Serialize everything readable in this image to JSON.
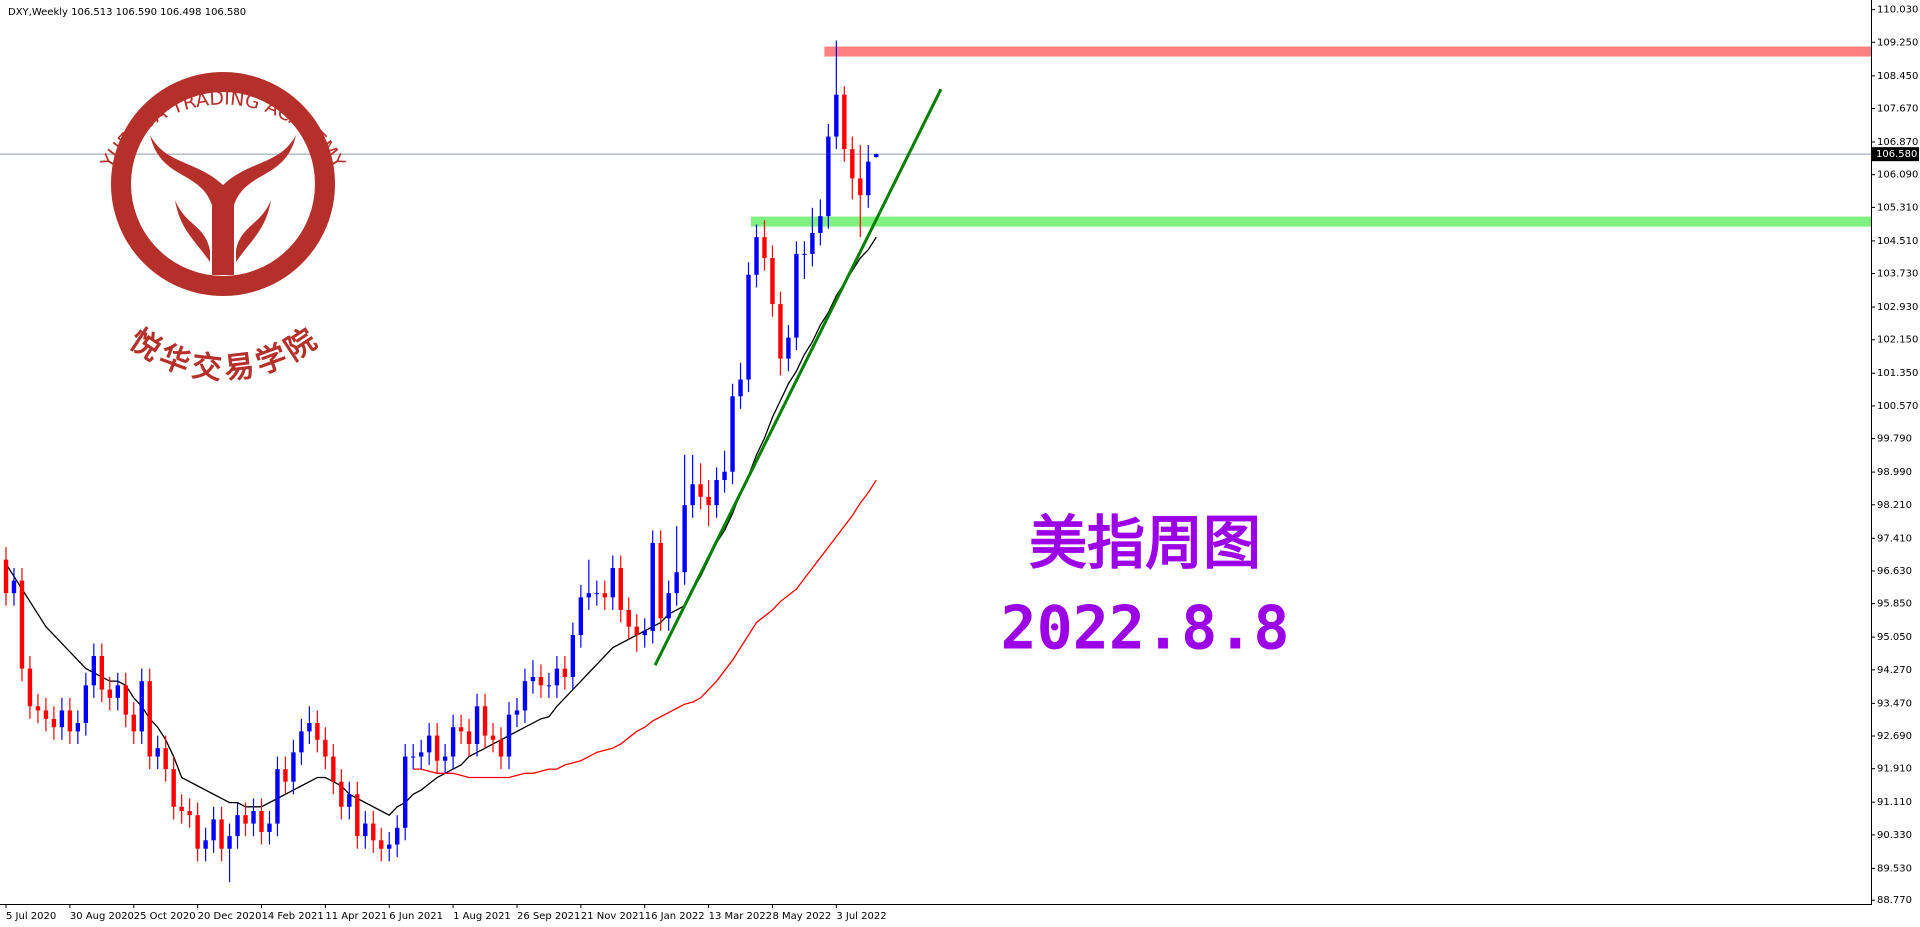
{
  "chart_data": {
    "type": "candlestick",
    "title": "DXY,Weekly  106.513 106.590 106.498 106.580",
    "annotations": [
      "美指周图",
      "2022.8.8"
    ],
    "logo": {
      "arc_text": "YUEHUA TRADING ACADEMY",
      "name": "悦华交易学院",
      "color": "#b5302a"
    },
    "annotation_color": "#9b00e6",
    "up_color": "#0000ff",
    "down_color": "#ff0000",
    "categories": [
      "5 Jul 2020",
      null,
      null,
      null,
      null,
      null,
      null,
      null,
      "30 Aug 2020",
      null,
      null,
      null,
      null,
      null,
      null,
      null,
      "25 Oct 2020",
      null,
      null,
      null,
      null,
      null,
      null,
      null,
      "20 Dec 2020",
      null,
      null,
      null,
      null,
      null,
      null,
      null,
      "14 Feb 2021",
      null,
      null,
      null,
      null,
      null,
      null,
      null,
      "11 Apr 2021",
      null,
      null,
      null,
      null,
      null,
      null,
      null,
      "6 Jun 2021",
      null,
      null,
      null,
      null,
      null,
      null,
      null,
      "1 Aug 2021",
      null,
      null,
      null,
      null,
      null,
      null,
      null,
      "26 Sep 2021",
      null,
      null,
      null,
      null,
      null,
      null,
      null,
      "21 Nov 2021",
      null,
      null,
      null,
      null,
      null,
      null,
      null,
      "16 Jan 2022",
      null,
      null,
      null,
      null,
      null,
      null,
      null,
      "13 Mar 2022",
      null,
      null,
      null,
      null,
      null,
      null,
      null,
      "8 May 2022",
      null,
      null,
      null,
      null,
      null,
      null,
      null,
      "3 Jul 2022",
      null,
      null,
      null,
      null,
      null
    ],
    "open": [
      96.9,
      96.1,
      96.4,
      94.3,
      93.4,
      93.3,
      93.1,
      92.9,
      93.3,
      92.8,
      93.0,
      93.9,
      94.6,
      93.8,
      93.6,
      93.9,
      93.2,
      92.8,
      94.0,
      92.2,
      92.4,
      91.9,
      91.0,
      90.9,
      90.8,
      90.0,
      90.2,
      90.7,
      90.0,
      90.3,
      90.8,
      90.6,
      90.9,
      90.4,
      90.6,
      91.9,
      91.6,
      92.3,
      92.8,
      93.0,
      92.6,
      92.2,
      91.6,
      91.0,
      91.3,
      90.3,
      90.6,
      90.2,
      90.0,
      90.1,
      90.5,
      92.2,
      92.2,
      92.3,
      92.7,
      92.1,
      92.2,
      92.9,
      92.8,
      92.5,
      93.4,
      92.7,
      92.6,
      92.2,
      93.2,
      93.3,
      94.0,
      94.1,
      93.9,
      93.9,
      94.3,
      94.1,
      95.1,
      96.0,
      96.1,
      96.1,
      96.0,
      96.7,
      95.7,
      95.3,
      95.1,
      95.2,
      97.3,
      95.5,
      96.1,
      96.6,
      98.2,
      98.7,
      98.4,
      98.2,
      98.8,
      99.0,
      100.8,
      101.2,
      103.7,
      104.6,
      104.1,
      103.0,
      101.7,
      102.2,
      104.2,
      104.2,
      104.7,
      105.1,
      107.0,
      108.0,
      106.7,
      106.0,
      105.6,
      106.513
    ],
    "high": [
      97.2,
      96.7,
      96.7,
      94.6,
      93.7,
      93.6,
      93.4,
      93.6,
      93.6,
      93.3,
      94.2,
      94.9,
      94.9,
      94.1,
      94.2,
      94.2,
      93.5,
      94.3,
      94.3,
      92.7,
      92.7,
      92.2,
      91.3,
      91.2,
      91.1,
      90.5,
      91.0,
      91.0,
      90.6,
      91.1,
      91.1,
      91.2,
      91.2,
      90.9,
      92.2,
      92.2,
      92.6,
      93.1,
      93.4,
      93.3,
      92.9,
      92.5,
      91.9,
      91.6,
      91.6,
      90.9,
      90.9,
      90.5,
      90.4,
      90.8,
      92.5,
      92.5,
      92.6,
      93.0,
      93.0,
      92.5,
      93.2,
      93.2,
      93.1,
      93.7,
      93.7,
      93.0,
      92.9,
      93.5,
      93.6,
      94.3,
      94.5,
      94.4,
      94.2,
      94.6,
      94.6,
      95.4,
      96.3,
      96.9,
      96.4,
      96.4,
      97.0,
      97.0,
      96.0,
      95.6,
      95.5,
      97.6,
      97.6,
      96.4,
      97.7,
      99.4,
      99.4,
      99.2,
      98.8,
      99.1,
      99.5,
      101.1,
      101.6,
      104.0,
      104.9,
      105.0,
      104.4,
      103.3,
      102.5,
      104.5,
      104.5,
      105.3,
      105.5,
      107.3,
      109.29,
      108.2,
      107.0,
      106.8,
      106.8,
      106.59
    ],
    "low": [
      95.8,
      95.8,
      94.0,
      93.1,
      93.0,
      92.8,
      92.6,
      92.6,
      92.5,
      92.5,
      92.7,
      93.6,
      93.5,
      93.3,
      93.3,
      92.9,
      92.5,
      92.5,
      91.9,
      91.9,
      91.6,
      90.7,
      90.6,
      90.5,
      89.7,
      89.7,
      89.9,
      89.7,
      89.2,
      90.0,
      90.3,
      90.3,
      90.1,
      90.1,
      90.3,
      91.3,
      91.3,
      92.0,
      92.5,
      92.3,
      91.9,
      91.3,
      90.7,
      90.7,
      90.0,
      90.0,
      89.9,
      89.7,
      89.7,
      89.8,
      90.2,
      91.9,
      91.9,
      92.0,
      91.8,
      91.8,
      91.9,
      92.5,
      92.2,
      92.2,
      92.4,
      92.3,
      91.9,
      91.9,
      92.9,
      93.0,
      93.7,
      93.6,
      93.6,
      93.6,
      93.8,
      93.8,
      94.8,
      95.7,
      95.8,
      95.7,
      95.7,
      95.4,
      95.0,
      94.7,
      94.8,
      94.9,
      95.2,
      95.2,
      95.8,
      96.3,
      97.9,
      98.1,
      97.7,
      97.9,
      98.5,
      98.7,
      100.5,
      100.9,
      103.4,
      103.8,
      102.7,
      101.3,
      101.4,
      101.9,
      103.6,
      103.9,
      104.4,
      104.8,
      106.7,
      106.4,
      105.5,
      104.6,
      105.3,
      106.498
    ],
    "close": [
      96.1,
      96.4,
      94.3,
      93.4,
      93.3,
      93.1,
      92.9,
      93.3,
      92.8,
      93.0,
      93.9,
      94.6,
      93.8,
      93.6,
      93.9,
      93.2,
      92.8,
      94.0,
      92.2,
      92.4,
      91.9,
      91.0,
      90.9,
      90.8,
      90.0,
      90.2,
      90.7,
      90.0,
      90.3,
      90.8,
      90.6,
      90.9,
      90.4,
      90.6,
      91.9,
      91.6,
      92.3,
      92.8,
      93.0,
      92.6,
      92.2,
      91.6,
      91.0,
      91.3,
      90.3,
      90.6,
      90.2,
      90.0,
      90.1,
      90.5,
      92.2,
      92.2,
      92.3,
      92.7,
      92.1,
      92.2,
      92.9,
      92.8,
      92.5,
      93.4,
      92.7,
      92.6,
      92.2,
      93.2,
      93.3,
      94.0,
      94.1,
      93.9,
      93.9,
      94.3,
      94.1,
      95.1,
      96.0,
      96.1,
      96.1,
      96.0,
      96.7,
      95.7,
      95.3,
      95.1,
      95.2,
      97.3,
      95.5,
      96.1,
      96.6,
      98.2,
      98.7,
      98.4,
      98.2,
      98.8,
      99.0,
      100.8,
      101.2,
      103.7,
      104.6,
      104.1,
      103.0,
      101.7,
      102.2,
      104.2,
      104.2,
      104.7,
      105.1,
      107.0,
      108.0,
      106.7,
      106.0,
      105.6,
      106.4,
      106.58
    ],
    "moving_averages": [
      {
        "color": "#000000",
        "values": [
          96.8,
          96.5,
          96.2,
          95.9,
          95.6,
          95.3,
          95.1,
          94.9,
          94.7,
          94.5,
          94.3,
          94.2,
          94.1,
          94.0,
          94.0,
          93.9,
          93.6,
          93.4,
          93.1,
          92.9,
          92.6,
          92.2,
          91.7,
          91.6,
          91.5,
          91.4,
          91.3,
          91.2,
          91.1,
          91.1,
          91.0,
          91.0,
          91.0,
          91.1,
          91.2,
          91.3,
          91.4,
          91.5,
          91.6,
          91.7,
          91.7,
          91.6,
          91.5,
          91.3,
          91.2,
          91.1,
          91.0,
          90.9,
          90.8,
          91.0,
          91.1,
          91.3,
          91.4,
          91.55,
          91.7,
          91.8,
          91.9,
          92.0,
          92.2,
          92.3,
          92.4,
          92.5,
          92.6,
          92.7,
          92.8,
          92.9,
          93.0,
          93.1,
          93.15,
          93.4,
          93.6,
          93.8,
          94.0,
          94.2,
          94.4,
          94.6,
          94.8,
          94.9,
          95.0,
          95.1,
          95.2,
          95.3,
          95.4,
          95.6,
          95.7,
          95.8,
          96.2,
          96.5,
          96.9,
          97.3,
          97.6,
          98.0,
          98.5,
          98.9,
          99.4,
          99.8,
          100.3,
          100.7,
          101.1,
          101.4,
          101.8,
          102.1,
          102.5,
          102.8,
          103.2,
          103.5,
          103.8,
          104.1,
          104.3,
          104.6
        ]
      },
      {
        "color": "#ff0000",
        "values": [
          null,
          null,
          null,
          null,
          null,
          null,
          null,
          null,
          null,
          null,
          null,
          null,
          null,
          null,
          null,
          null,
          null,
          null,
          null,
          null,
          null,
          null,
          null,
          null,
          null,
          null,
          null,
          null,
          null,
          null,
          null,
          null,
          null,
          null,
          null,
          null,
          null,
          null,
          null,
          null,
          null,
          null,
          null,
          null,
          null,
          null,
          null,
          null,
          null,
          null,
          null,
          91.9,
          91.9,
          91.85,
          91.8,
          91.8,
          91.8,
          91.75,
          91.7,
          91.7,
          91.7,
          91.7,
          91.7,
          91.7,
          91.75,
          91.8,
          91.8,
          91.85,
          91.9,
          91.9,
          92.0,
          92.05,
          92.1,
          92.2,
          92.3,
          92.35,
          92.4,
          92.5,
          92.65,
          92.8,
          92.9,
          93.05,
          93.15,
          93.25,
          93.35,
          93.45,
          93.5,
          93.6,
          93.8,
          94.0,
          94.25,
          94.5,
          94.8,
          95.1,
          95.4,
          95.55,
          95.7,
          95.9,
          96.05,
          96.2,
          96.45,
          96.7,
          96.95,
          97.2,
          97.45,
          97.7,
          97.95,
          98.25,
          98.5,
          98.8
        ]
      }
    ],
    "trend_line": {
      "color": "#008000",
      "start": [
        81.3,
        94.38
      ],
      "end": [
        117.1,
        108.13
      ]
    },
    "zones": [
      {
        "color": "#ff8080",
        "from": 108.91,
        "to": 109.15,
        "start": 102.5
      },
      {
        "color": "#80f080",
        "from": 104.85,
        "to": 105.09,
        "start": 93.3
      }
    ],
    "price_line": {
      "value": 106.58,
      "label": "106.580",
      "color": "#8a9bb0"
    },
    "ylim": [
      88.68,
      110.26
    ],
    "yticks": [
      {
        "value": 110.03,
        "label": "110.030"
      },
      {
        "value": 109.25,
        "label": "109.250"
      },
      {
        "value": 108.45,
        "label": "108.450"
      },
      {
        "value": 107.67,
        "label": "107.670"
      },
      {
        "value": 106.87,
        "label": "106.870"
      },
      {
        "value": 106.09,
        "label": "106.090"
      },
      {
        "value": 105.31,
        "label": "105.310"
      },
      {
        "value": 104.51,
        "label": "104.510"
      },
      {
        "value": 103.73,
        "label": "103.730"
      },
      {
        "value": 102.93,
        "label": "102.930"
      },
      {
        "value": 102.15,
        "label": "102.150"
      },
      {
        "value": 101.35,
        "label": "101.350"
      },
      {
        "value": 100.57,
        "label": "100.570"
      },
      {
        "value": 99.79,
        "label": "99.790"
      },
      {
        "value": 98.99,
        "label": "98.990"
      },
      {
        "value": 98.21,
        "label": "98.210"
      },
      {
        "value": 97.41,
        "label": "97.410"
      },
      {
        "value": 96.63,
        "label": "96.630"
      },
      {
        "value": 95.85,
        "label": "95.850"
      },
      {
        "value": 95.05,
        "label": "95.050"
      },
      {
        "value": 94.27,
        "label": "94.270"
      },
      {
        "value": 93.47,
        "label": "93.470"
      },
      {
        "value": 92.69,
        "label": "92.690"
      },
      {
        "value": 91.91,
        "label": "91.910"
      },
      {
        "value": 91.11,
        "label": "91.110"
      },
      {
        "value": 90.33,
        "label": "90.330"
      },
      {
        "value": 89.53,
        "label": "89.530"
      },
      {
        "value": 88.77,
        "label": "88.770"
      }
    ]
  }
}
